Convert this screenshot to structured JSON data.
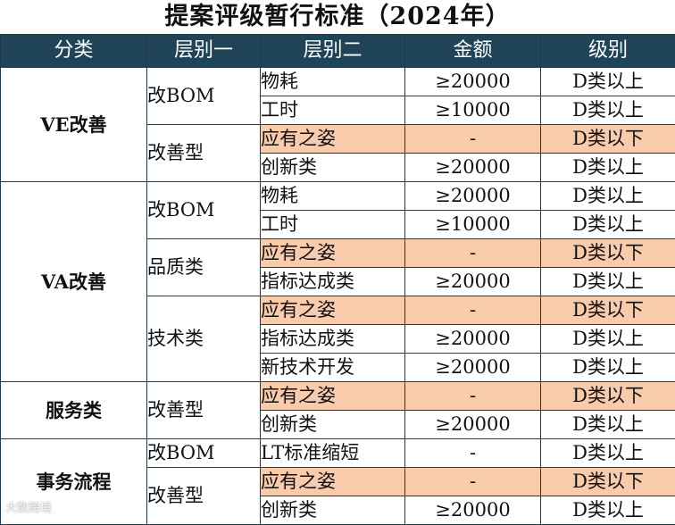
{
  "title": "提案评级暂行标准（2024年）",
  "headers": [
    "分类",
    "层别一",
    "层别二",
    "金额",
    "级别"
  ],
  "categories": {
    "ve": "VE改善",
    "va": "VA改善",
    "service": "服务类",
    "affairs": "事务流程"
  },
  "level1": {
    "ve_bom": "改BOM",
    "ve_improve": "改善型",
    "va_bom": "改BOM",
    "va_quality": "品质类",
    "va_tech": "技术类",
    "service_improve": "改善型",
    "affairs_bom": "改BOM",
    "affairs_improve": "改善型"
  },
  "rows": [
    {
      "l2": "物耗",
      "amount": "≥20000",
      "level": "D类以上"
    },
    {
      "l2": "工时",
      "amount": "≥10000",
      "level": "D类以上"
    },
    {
      "l2": "应有之姿",
      "amount": "-",
      "level": "D类以下"
    },
    {
      "l2": "创新类",
      "amount": "≥20000",
      "level": "D类以上"
    },
    {
      "l2": "物耗",
      "amount": "≥20000",
      "level": "D类以上"
    },
    {
      "l2": "工时",
      "amount": "≥10000",
      "level": "D类以上"
    },
    {
      "l2": "应有之姿",
      "amount": "-",
      "level": "D类以下"
    },
    {
      "l2": "指标达成类",
      "amount": "≥20000",
      "level": "D类以上"
    },
    {
      "l2": "应有之姿",
      "amount": "-",
      "level": "D类以下"
    },
    {
      "l2": "指标达成类",
      "amount": "≥20000",
      "level": "D类以上"
    },
    {
      "l2": "新技术开发",
      "amount": "≥20000",
      "level": "D类以上"
    },
    {
      "l2": "应有之姿",
      "amount": "-",
      "level": "D类以下"
    },
    {
      "l2": "创新类",
      "amount": "≥20000",
      "level": "D类以上"
    },
    {
      "l2": "LT标准缩短",
      "amount": "-",
      "level": "D类以上"
    },
    {
      "l2": "应有之姿",
      "amount": "-",
      "level": "D类以下"
    },
    {
      "l2": "创新类",
      "amount": "≥20000",
      "level": "D类以上"
    }
  ],
  "highlight_color": "#f8cbad",
  "header_color": "#1f4457",
  "watermark": "大数跨境"
}
